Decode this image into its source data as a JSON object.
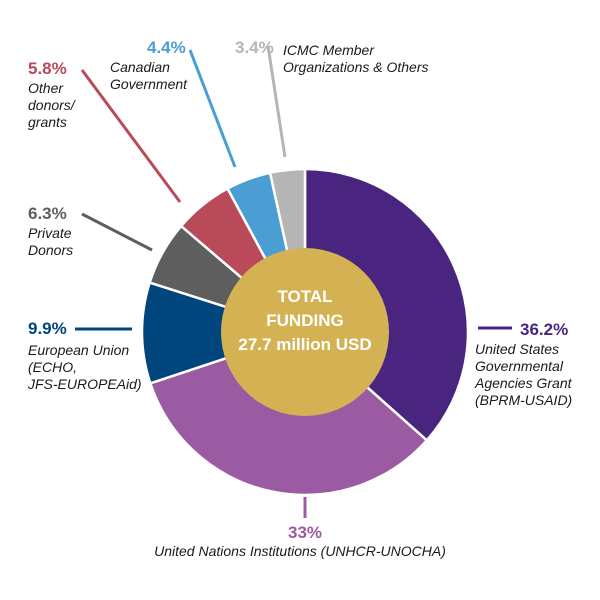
{
  "chart_data": {
    "type": "pie",
    "slices": [
      {
        "label": "United States Governmental Agencies Grant (BPRM-USAID)",
        "value": 36.2,
        "pct_text": "36.2%",
        "color": "#4a2580"
      },
      {
        "label": "United Nations Institutions (UNHCR-UNOCHA)",
        "value": 33,
        "pct_text": "33%",
        "color": "#9b5ba3"
      },
      {
        "label": "European Union (ECHO, JFS-EUROPEAid)",
        "value": 9.9,
        "pct_text": "9.9%",
        "color": "#00457c"
      },
      {
        "label": "Private Donors",
        "value": 6.3,
        "pct_text": "6.3%",
        "color": "#5e5e5e"
      },
      {
        "label": "Other donors/ grants",
        "value": 5.8,
        "pct_text": "5.8%",
        "color": "#b94a5a"
      },
      {
        "label": "Canadian Government",
        "value": 4.4,
        "pct_text": "4.4%",
        "color": "#4b9ed3"
      },
      {
        "label": "ICMC Member Organizations & Others",
        "value": 3.4,
        "pct_text": "3.4%",
        "color": "#b5b5b5"
      }
    ],
    "center_text": {
      "line1": "TOTAL",
      "line2": "FUNDING",
      "line3": "27.7 million USD"
    },
    "center_color": "#d4b253"
  }
}
